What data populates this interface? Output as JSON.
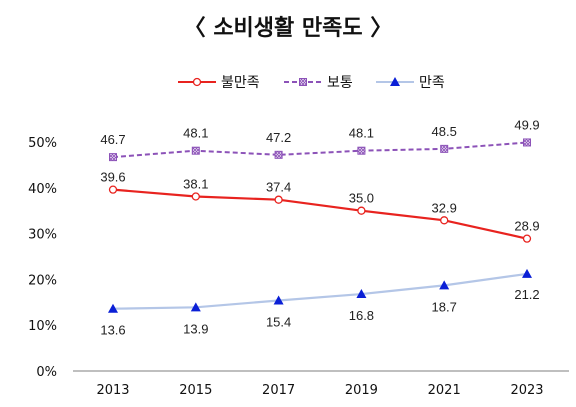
{
  "chart_data": {
    "type": "line",
    "title": "〈 소비생활 만족도 〉",
    "x": [
      "2013",
      "2015",
      "2017",
      "2019",
      "2021",
      "2023"
    ],
    "ylim": [
      0,
      50
    ],
    "yticks": [
      0,
      10,
      20,
      30,
      40,
      50
    ],
    "ytick_labels": [
      "0%",
      "10%",
      "20%",
      "30%",
      "40%",
      "50%"
    ],
    "grid": false,
    "legend_position": "top-center",
    "series": [
      {
        "name": "불만족",
        "values": [
          39.6,
          38.1,
          37.4,
          35.0,
          32.9,
          28.9
        ],
        "labels": [
          "39.6",
          "38.1",
          "37.4",
          "35.0",
          "32.9",
          "28.9"
        ],
        "color": "#e8231f",
        "marker": "circle-open",
        "line": "solid"
      },
      {
        "name": "보통",
        "values": [
          46.7,
          48.1,
          47.2,
          48.1,
          48.5,
          49.9
        ],
        "labels": [
          "46.7",
          "48.1",
          "47.2",
          "48.1",
          "48.5",
          "49.9"
        ],
        "color": "#8c52b8",
        "marker": "square-hatched",
        "line": "dashed"
      },
      {
        "name": "만족",
        "values": [
          13.6,
          13.9,
          15.4,
          16.8,
          18.7,
          21.2
        ],
        "labels": [
          "13.6",
          "13.9",
          "15.4",
          "16.8",
          "18.7",
          "21.2"
        ],
        "color": "#b4c6e7",
        "marker_color": "#0a1fd6",
        "marker": "triangle",
        "line": "solid"
      }
    ]
  }
}
